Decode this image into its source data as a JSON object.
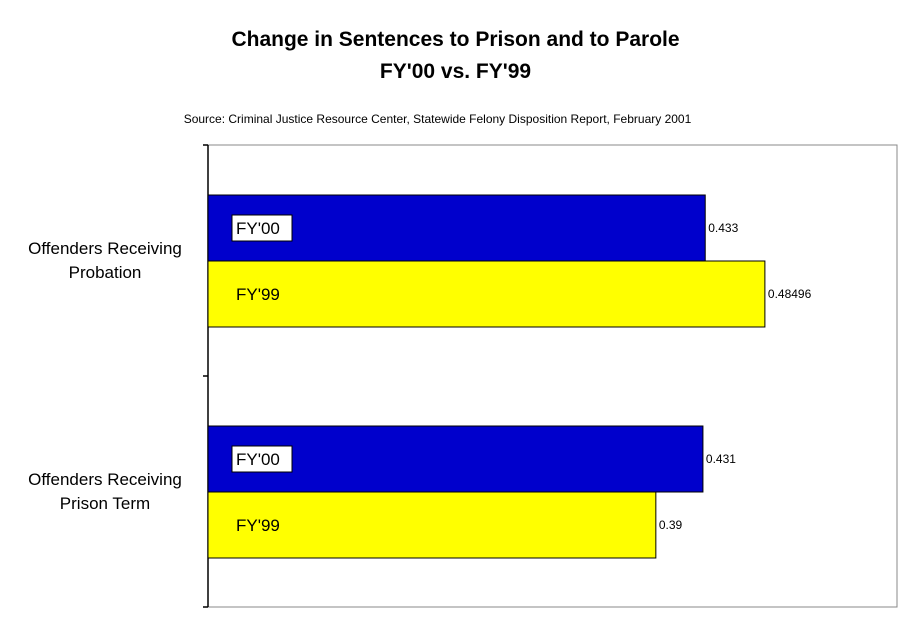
{
  "chart_data": {
    "type": "bar",
    "orientation": "horizontal",
    "title": "Change in Sentences to Prison and to Parole",
    "subtitle": "FY'00 vs. FY'99",
    "source": "Source: Criminal Justice Resource Center, Statewide Felony Disposition Report, February 2001",
    "categories": [
      [
        "Offenders Receiving",
        "Probation"
      ],
      [
        "Offenders Receiving",
        "Prison Term"
      ]
    ],
    "series": [
      {
        "name": "FY'00",
        "color": "#0000cc",
        "values": [
          0.433,
          0.431
        ],
        "labels": [
          "0.433",
          "0.431"
        ]
      },
      {
        "name": "FY'99",
        "color": "#ffff00",
        "values": [
          0.48496,
          0.39
        ],
        "labels": [
          "0.48496",
          "0.39"
        ]
      }
    ],
    "xlim": [
      0,
      0.6
    ],
    "grid": false,
    "legend": "none"
  }
}
